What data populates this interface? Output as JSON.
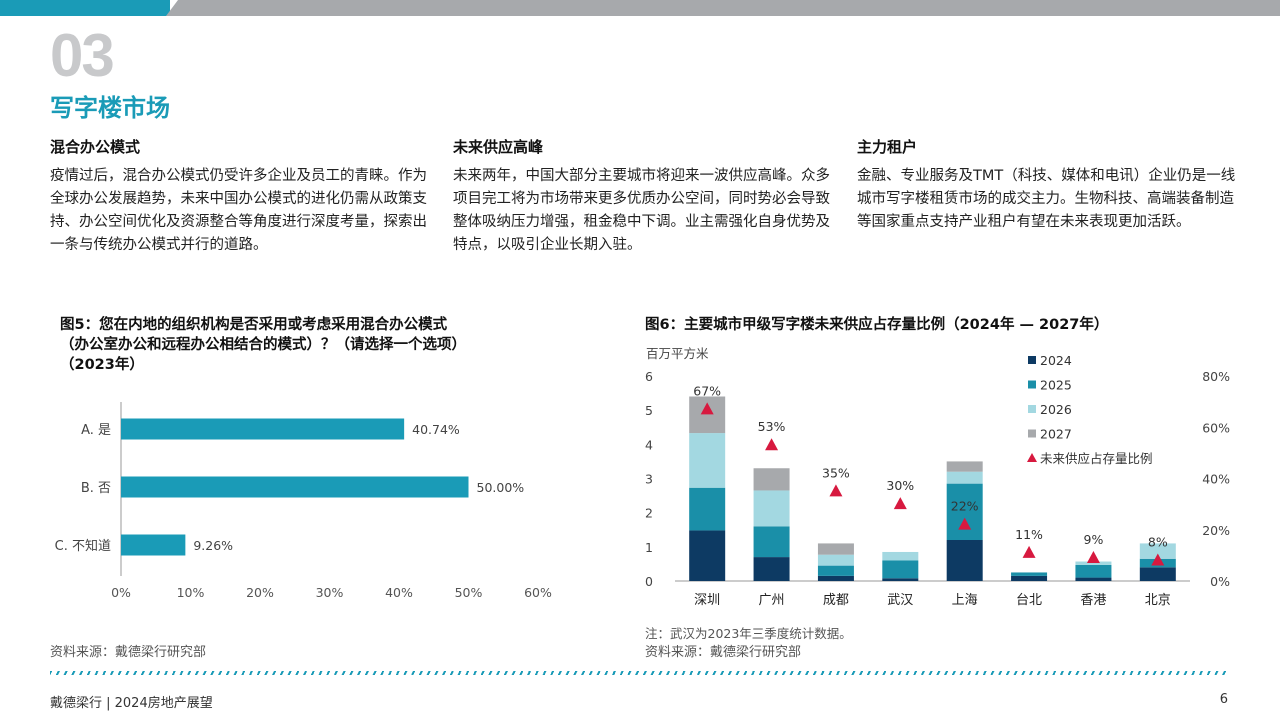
{
  "header": {
    "section_number": "03",
    "section_title": "写字楼市场"
  },
  "columns": [
    {
      "heading": "混合办公模式",
      "body": "疫情过后，混合办公模式仍受许多企业及员工的青睐。作为全球办公发展趋势，未来中国办公模式的进化仍需从政策支持、办公空间优化及资源整合等角度进行深度考量，探索出一条与传统办公模式并行的道路。"
    },
    {
      "heading": "未来供应高峰",
      "body": "未来两年，中国大部分主要城市将迎来一波供应高峰。众多项目完工将为市场带来更多优质办公空间，同时势必会导致整体吸纳压力增强，租金稳中下调。业主需强化自身优势及特点，以吸引企业长期入驻。"
    },
    {
      "heading": "主力租户",
      "body": "金融、专业服务及TMT（科技、媒体和电讯）企业仍是一线城市写字楼租赁市场的成交主力。生物科技、高端装备制造等国家重点支持产业租户有望在未来表现更加活跃。"
    }
  ],
  "figure5": {
    "title_lines": [
      "图5：您在内地的组织机构是否采用或考虑采用混合办公模式",
      "（办公室办公和远程办公相结合的模式）？（请选择一个选项）",
      "（2023年）"
    ],
    "source": "资料来源：戴德梁行研究部"
  },
  "figure6": {
    "title": "图6：主要城市甲级写字楼未来供应占存量比例（2024年 — 2027年）",
    "note": "注：武汉为2023年三季度统计数据。",
    "source": "资料来源：戴德梁行研究部"
  },
  "chart_data": [
    {
      "type": "bar",
      "orientation": "horizontal",
      "categories": [
        "A. 是",
        "B. 否",
        "C. 不知道"
      ],
      "values": [
        40.74,
        50.0,
        9.26
      ],
      "data_labels": [
        "40.74%",
        "50.00%",
        "9.26%"
      ],
      "xlim": [
        0,
        60
      ],
      "xticks": [
        "0%",
        "10%",
        "20%",
        "30%",
        "40%",
        "50%",
        "60%"
      ],
      "color": "#1a9bb7"
    },
    {
      "type": "bar",
      "stacked": true,
      "ylabel": "百万平方米",
      "ylim": [
        0,
        6
      ],
      "yticks": [
        "0",
        "1",
        "2",
        "3",
        "4",
        "5",
        "6"
      ],
      "y2lim": [
        0,
        80
      ],
      "y2ticks": [
        "0%",
        "20%",
        "40%",
        "60%",
        "80%"
      ],
      "categories": [
        "深圳",
        "广州",
        "成都",
        "武汉",
        "上海",
        "台北",
        "香港",
        "北京"
      ],
      "series": [
        {
          "name": "2024",
          "color": "#0d3a63",
          "values": [
            1.48,
            0.7,
            0.15,
            0.08,
            1.2,
            0.15,
            0.1,
            0.4
          ]
        },
        {
          "name": "2025",
          "color": "#1a8fa8",
          "values": [
            1.25,
            0.9,
            0.3,
            0.52,
            1.65,
            0.1,
            0.37,
            0.25
          ]
        },
        {
          "name": "2026",
          "color": "#a3d8e1",
          "values": [
            1.6,
            1.05,
            0.32,
            0.25,
            0.35,
            0.0,
            0.1,
            0.45
          ]
        },
        {
          "name": "2027",
          "color": "#a7a9ac",
          "values": [
            1.07,
            0.65,
            0.33,
            0.0,
            0.3,
            0.0,
            0.0,
            0.0
          ]
        }
      ],
      "ratio_series": {
        "name": "未来供应占存量比例",
        "color": "#d7193f",
        "values": [
          67,
          53,
          35,
          30,
          22,
          11,
          9,
          8
        ],
        "labels": [
          "67%",
          "53%",
          "35%",
          "30%",
          "22%",
          "11%",
          "9%",
          "8%"
        ]
      },
      "legend_position": "top-right"
    }
  ],
  "footer": {
    "left": "戴德梁行 | 2024房地产展望",
    "page": "6"
  }
}
